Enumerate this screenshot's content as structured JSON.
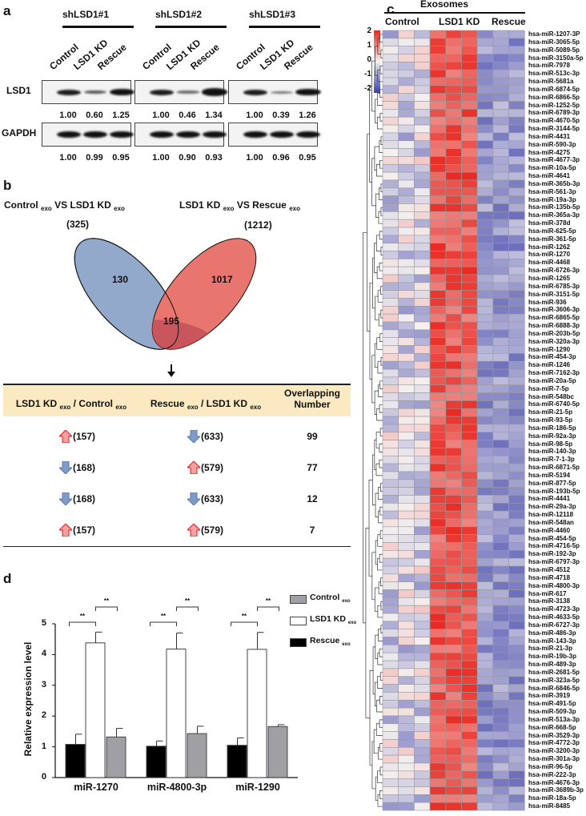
{
  "panel_a": {
    "label": "a",
    "groups": [
      {
        "name": "shLSD1#1",
        "lanes": [
          "Control",
          "LSD1 KD",
          "Rescue"
        ],
        "lsd1": [
          "1.00",
          "0.60",
          "1.25"
        ],
        "gapdh": [
          "1.00",
          "0.99",
          "0.95"
        ],
        "lsd1_intensity": [
          1.0,
          0.6,
          1.25
        ]
      },
      {
        "name": "shLSD1#2",
        "lanes": [
          "Control",
          "LSD1 KD",
          "Rescue"
        ],
        "lsd1": [
          "1.00",
          "0.46",
          "1.34"
        ],
        "gapdh": [
          "1.00",
          "0.90",
          "0.93"
        ],
        "lsd1_intensity": [
          1.0,
          0.46,
          1.34
        ]
      },
      {
        "name": "shLSD1#3",
        "lanes": [
          "Control",
          "LSD1 KD",
          "Rescue"
        ],
        "lsd1": [
          "1.00",
          "0.39",
          "1.26"
        ],
        "gapdh": [
          "1.00",
          "0.96",
          "0.95"
        ],
        "lsd1_intensity": [
          1.0,
          0.39,
          1.26
        ]
      }
    ],
    "rows": [
      "LSD1",
      "GAPDH"
    ]
  },
  "panel_b": {
    "label": "b",
    "left_title": {
      "a": "Control",
      "b": "exo",
      "c": " VS LSD1 KD",
      "d": "exo"
    },
    "right_title": {
      "a": "LSD1 KD",
      "b": "exo",
      "c": " VS Rescue",
      "d": "exo"
    },
    "left_total": "(325)",
    "right_total": "(1212)",
    "left_only": "130",
    "right_only": "1017",
    "overlap": "195",
    "colors": {
      "left": "#93a9cc",
      "right": "#e8756e",
      "overlap": "#c9565c"
    },
    "table": {
      "headers": [
        {
          "a": "LSD1 KD",
          "b": "exo",
          "c": " / Control",
          "d": "exo"
        },
        {
          "a": "Rescue",
          "b": "exo",
          "c": " / LSD1 KD",
          "d": "exo"
        },
        {
          "a": "Overlapping",
          "c": "Number"
        }
      ],
      "rows": [
        {
          "c1_dir": "up",
          "c1": "(157)",
          "c2_dir": "down",
          "c2": "(633)",
          "n": "99"
        },
        {
          "c1_dir": "down",
          "c1": "(168)",
          "c2_dir": "up",
          "c2": "(579)",
          "n": "77"
        },
        {
          "c1_dir": "down",
          "c1": "(168)",
          "c2_dir": "down",
          "c2": "(633)",
          "n": "12"
        },
        {
          "c1_dir": "up",
          "c1": "(157)",
          "c2_dir": "up",
          "c2": "(579)",
          "n": "7"
        }
      ]
    }
  },
  "chart_data": [
    {
      "type": "heatmap",
      "label": "c",
      "title": "Exosomes",
      "groups": [
        "Control",
        "LSD1 KD",
        "Rescue"
      ],
      "replicates_per_group": 3,
      "color_scale": {
        "ticks": [
          "2",
          "1",
          "0",
          "-1",
          "-2"
        ],
        "min": -2,
        "max": 2,
        "low": "#3a3ea8",
        "mid": "#f4f0f0",
        "high": "#e8261e"
      },
      "group_mean_z": {
        "Control": -0.3,
        "LSD1 KD": 1.5,
        "Rescue": -1.0
      },
      "rows": [
        "hsa-miR-1207-3P",
        "hsa-miR-3065-5p",
        "hsa-miR-5089-5p",
        "hsa-miR-3150a-5p",
        "hsa-miR-7978",
        "hsa-miR-513c-3p",
        "hsa-miR-5681a",
        "hsa-miR-6874-5p",
        "hsa-miR-6866-5p",
        "hsa-miR-1252-5p",
        "hsa-miR-6789-3p",
        "hsa-miR-4670-5p",
        "hsa-miR-3144-5p",
        "hsa-miR-4431",
        "hsa-miR-590-3p",
        "hsa-miR-4275",
        "hsa-miR-4677-3p",
        "hsa-miR-10a-5p",
        "hsa-miR-4641",
        "hsa-miR-365b-3p",
        "hsa-miR-561-3p",
        "hsa-miR-19a-3p",
        "hsa-miR-135b-5p",
        "hsa-miR-365a-3p",
        "hsa-miR-378d",
        "hsa-miR-625-5p",
        "hsa-miR-361-5p",
        "hsa-miR-1262",
        "hsa-miR-1270",
        "hsa-miR-4468",
        "hsa-miR-6726-3p",
        "hsa-miR-1265",
        "hsa-miR-6785-3p",
        "hsa-miR-3151-5p",
        "hsa-miR-936",
        "hsa-miR-3606-3p",
        "hsa-miR-6865-5p",
        "hsa-miR-6888-3p",
        "hsa-miR-203b-5p",
        "hsa-miR-320a-3p",
        "hsa-miR-1290",
        "hsa-miR-454-3p",
        "hsa-miR-1246",
        "hsa-miR-7162-3p",
        "hsa-miR-20a-5p",
        "hsa-miR-7-5p",
        "hsa-miR-548bc",
        "hsa-miR-6740-5p",
        "hsa-miR-21-5p",
        "hsa-miR-93-5p",
        "hsa-miR-186-5p",
        "hsa-miR-92a-3p",
        "hsa-miR-98-5p",
        "hsa-miR-140-3p",
        "hsa-miR-7-1-3p",
        "hsa-miR-6871-5p",
        "hsa-miR-5194",
        "hsa-miR-877-5p",
        "hsa-miR-193b-5p",
        "hsa-miR-4441",
        "hsa-miR-29a-3p",
        "hsa-miR-12118",
        "hsa-miR-548an",
        "hsa-miR-4460",
        "hsa-miR-454-5p",
        "hsa-miR-4716-5p",
        "hsa-miR-192-3p",
        "hsa-miR-6797-3p",
        "hsa-miR-4512",
        "hsa-miR-4718",
        "hsa-miR-4800-3p",
        "hsa-miR-617",
        "hsa-miR-3138",
        "hsa-miR-4723-3p",
        "hsa-miR-4633-5p",
        "hsa-miR-6727-3p",
        "hsa-miR-486-3p",
        "hsa-miR-143-3p",
        "hsa-miR-21-3p",
        "hsa-miR-19b-3p",
        "hsa-miR-489-3p",
        "hsa-miR-2681-5p",
        "hsa-miR-323a-5p",
        "hsa-miR-6846-5p",
        "hsa-miR-3919",
        "hsa-miR-491-5p",
        "hsa-miR-509-3p",
        "hsa-miR-513a-3p",
        "hsa-miR-668-5p",
        "hsa-miR-3529-3p",
        "hsa-miR-4772-3p",
        "hsa-miR-3200-3p",
        "hsa-miR-301a-3p",
        "hsa-miR-96-5p",
        "hsa-miR-222-3p",
        "hsa-miR-4676-3p",
        "hsa-miR-3689b-3p",
        "hsa-miR-18a-5p",
        "hsa-miR-8485"
      ]
    },
    {
      "type": "bar",
      "label": "d",
      "categories": [
        "miR-1270",
        "miR-4800-3p",
        "miR-1290"
      ],
      "ylabel": "Relative expression level",
      "ylim": [
        0,
        5
      ],
      "yticks": [
        "0",
        "1",
        "2",
        "3",
        "4",
        "5"
      ],
      "significance": "**",
      "legend": [
        {
          "name": "Control",
          "sub": "exo",
          "color": "#a0a0a4"
        },
        {
          "name": "LSD1 KD",
          "sub": "exo",
          "color": "#ffffff"
        },
        {
          "name": "Rescue",
          "sub": "exo",
          "color": "#000000"
        }
      ],
      "legend_position": "top-right",
      "series": [
        {
          "name": "Rescue",
          "color": "#000000",
          "values": [
            1.08,
            1.02,
            1.05
          ],
          "errors": [
            0.33,
            0.17,
            0.24
          ]
        },
        {
          "name": "LSD1 KD",
          "color": "#ffffff",
          "values": [
            4.38,
            4.18,
            4.17
          ],
          "errors": [
            0.35,
            0.52,
            0.55
          ]
        },
        {
          "name": "Control",
          "color": "#a0a0a4",
          "values": [
            1.32,
            1.43,
            1.66
          ],
          "errors": [
            0.28,
            0.24,
            0.06
          ]
        }
      ]
    }
  ]
}
